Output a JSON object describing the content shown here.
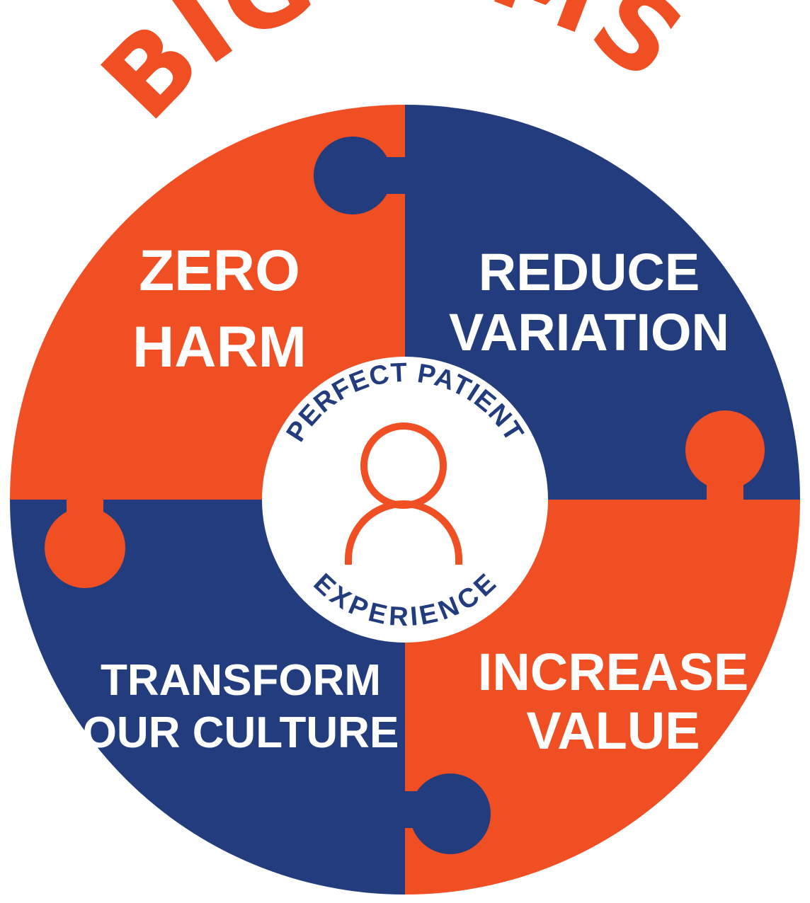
{
  "title": "BIG AIMS",
  "quadrants": {
    "top_left": [
      "ZERO",
      "HARM"
    ],
    "top_right": [
      "REDUCE",
      "VARIATION"
    ],
    "bottom_left": [
      "TRANSFORM",
      "OUR CULTURE"
    ],
    "bottom_right": [
      "INCREASE",
      "VALUE"
    ]
  },
  "center": {
    "top_arc": "PERFECT PATIENT",
    "bottom_arc": "EXPERIENCE",
    "icon": "person-icon"
  },
  "colors": {
    "orange": "#F04E23",
    "navy": "#223C7D",
    "white": "#FFFFFF"
  }
}
